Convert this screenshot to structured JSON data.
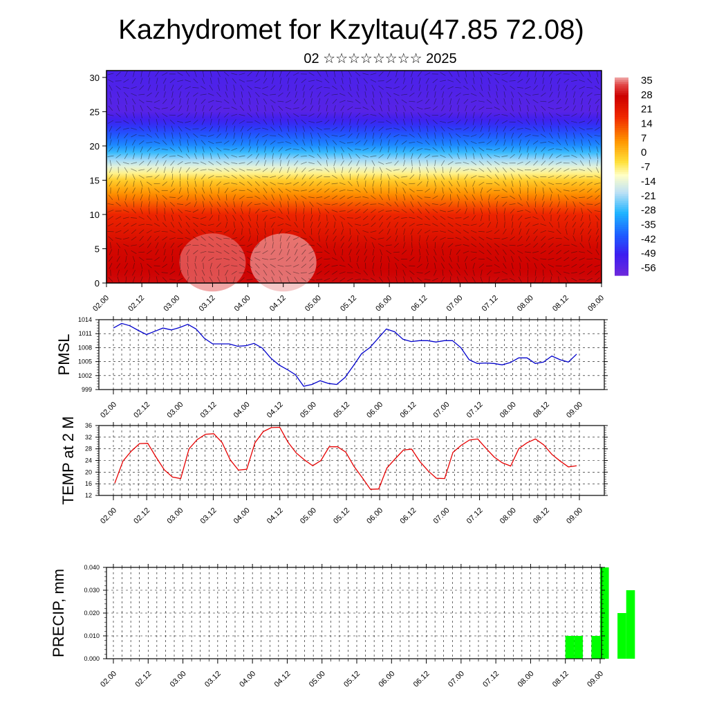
{
  "title": "Kazhydromet for Kzyltau(47.85 72.08)",
  "subtitle": "02 ☆☆☆☆☆☆☆☆ 2025",
  "time_ticks": [
    "02.00",
    "02.12",
    "03.00",
    "03.12",
    "04.00",
    "04.12",
    "05.00",
    "05.12",
    "06.00",
    "06.12",
    "07.00",
    "07.12",
    "08.00",
    "08.12",
    "09.00"
  ],
  "chart_data": [
    {
      "type": "heatmap",
      "name": "temperature-cross-section",
      "x_ticks": [
        "02.00",
        "02.12",
        "03.00",
        "03.12",
        "04.00",
        "04.12",
        "05.00",
        "05.12",
        "06.00",
        "06.12",
        "07.00",
        "07.12",
        "08.00",
        "08.12",
        "09.00"
      ],
      "y_ticks": [
        0,
        5,
        10,
        15,
        20,
        25,
        30
      ],
      "ylim": [
        0,
        31
      ],
      "colorbar": {
        "labels": [
          35,
          28,
          21,
          14,
          7,
          0,
          -7,
          -14,
          -21,
          -28,
          -35,
          -42,
          -49,
          -56
        ],
        "range": [
          -63,
          42
        ]
      },
      "temperature_by_level": [
        [
          0,
          33
        ],
        [
          5,
          30
        ],
        [
          10,
          22
        ],
        [
          15,
          0
        ],
        [
          20,
          -35
        ],
        [
          25,
          -58
        ],
        [
          31,
          -55
        ]
      ],
      "warm_cores": [
        {
          "x": "03.12",
          "level": 3,
          "value": 40
        },
        {
          "x": "04.12",
          "level": 3,
          "value": 42
        }
      ],
      "grid": false
    },
    {
      "type": "line",
      "ylabel": "PMSL",
      "x_ticks": [
        "02.00",
        "02.12",
        "03.00",
        "03.12",
        "04.00",
        "04.12",
        "05.00",
        "05.12",
        "06.00",
        "06.12",
        "07.00",
        "07.12",
        "08.00",
        "08.12",
        "09.00"
      ],
      "y_ticks": [
        999,
        1002,
        1005,
        1008,
        1011,
        1014
      ],
      "ylim": [
        999,
        1014
      ],
      "grid": true,
      "color": "#0000cc",
      "values": [
        1012.2,
        1013.2,
        1012.7,
        1011.7,
        1010.8,
        1011.5,
        1012.2,
        1011.8,
        1012.3,
        1013.0,
        1012.0,
        1010.0,
        1008.8,
        1008.8,
        1008.8,
        1008.3,
        1008.4,
        1008.9,
        1007.9,
        1005.8,
        1004.3,
        1003.3,
        1002.2,
        999.7,
        1000.1,
        1000.9,
        1000.3,
        1000.1,
        1001.6,
        1004.1,
        1006.7,
        1008.0,
        1010.0,
        1012.0,
        1011.4,
        1009.8,
        1009.3,
        1009.5,
        1009.5,
        1009.2,
        1009.5,
        1009.5,
        1008.0,
        1005.4,
        1004.6,
        1004.7,
        1004.6,
        1004.3,
        1004.8,
        1005.8,
        1005.8,
        1004.6,
        1004.9,
        1006.2,
        1005.4,
        1004.9,
        1006.6
      ]
    },
    {
      "type": "line",
      "ylabel": "TEMP at 2 M",
      "x_ticks": [
        "02.00",
        "02.12",
        "03.00",
        "03.12",
        "04.00",
        "04.12",
        "05.00",
        "05.12",
        "06.00",
        "06.12",
        "07.00",
        "07.12",
        "08.00",
        "08.12",
        "09.00"
      ],
      "y_ticks": [
        12,
        16,
        20,
        24,
        28,
        32,
        36
      ],
      "ylim": [
        12,
        36
      ],
      "grid": true,
      "color": "#e60000",
      "values": [
        16.2,
        23.8,
        27.2,
        29.8,
        29.9,
        25.2,
        20.8,
        18.3,
        17.8,
        28.0,
        31.2,
        33.0,
        33.2,
        30.2,
        24.2,
        20.7,
        21.0,
        30.1,
        33.9,
        35.3,
        35.4,
        30.3,
        26.6,
        24.2,
        22.2,
        24.0,
        28.7,
        28.7,
        26.9,
        22.0,
        18.1,
        14.1,
        14.2,
        21.4,
        24.6,
        27.6,
        27.9,
        23.6,
        20.4,
        17.9,
        17.8,
        26.8,
        29.2,
        31.0,
        31.4,
        28.2,
        25.2,
        23.2,
        22.1,
        28.1,
        30.1,
        31.4,
        29.4,
        26.1,
        23.8,
        21.8,
        22.2
      ]
    },
    {
      "type": "bar",
      "ylabel": "PRECIP, mm",
      "x_ticks": [
        "02.00",
        "02.12",
        "03.00",
        "03.12",
        "04.00",
        "04.12",
        "05.00",
        "05.12",
        "06.00",
        "06.12",
        "07.00",
        "07.12",
        "08.00",
        "08.12",
        "09.00"
      ],
      "y_ticks": [
        "0.000",
        "0.010",
        "0.020",
        "0.030",
        "0.040"
      ],
      "ylim": [
        0,
        0.04
      ],
      "grid": true,
      "color": "#00ff00",
      "bars": [
        {
          "x_step": 52,
          "value": 0.01
        },
        {
          "x_step": 53,
          "value": 0.01
        },
        {
          "x_step": 55,
          "value": 0.01
        },
        {
          "x_step": 56,
          "value": 0.04
        },
        {
          "x_step": 58,
          "value": 0.02
        },
        {
          "x_step": 59,
          "value": 0.03
        }
      ]
    }
  ]
}
